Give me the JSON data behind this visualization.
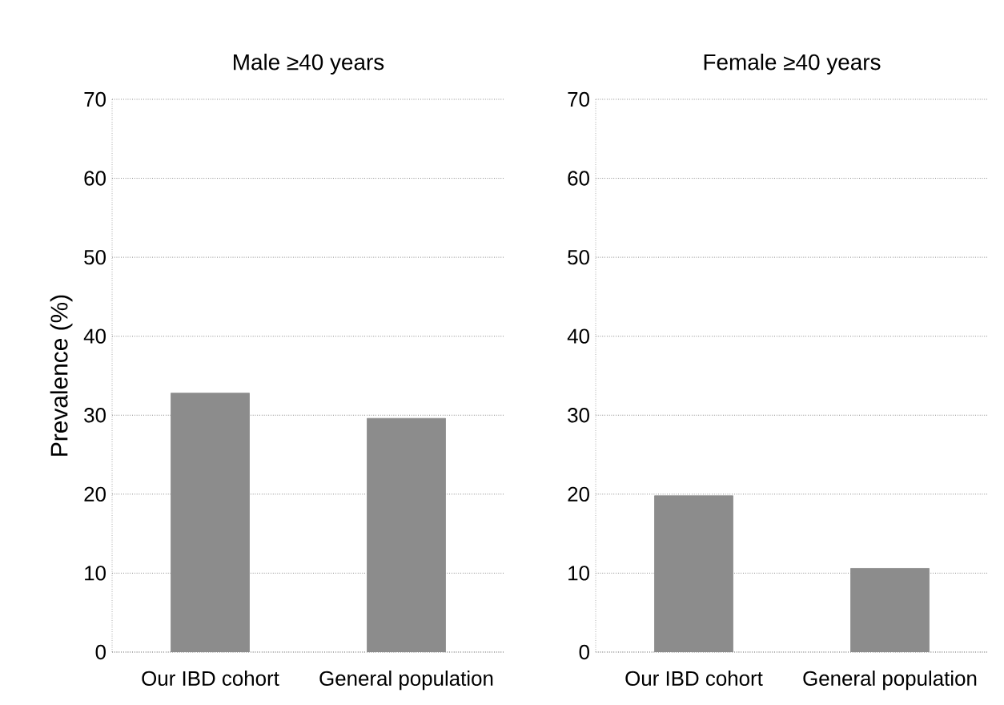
{
  "chart_data": [
    {
      "type": "bar",
      "title": "Male  ≥40 years",
      "ylabel": "Prevalence (%)",
      "categories": [
        "Our IBD cohort",
        "General population"
      ],
      "values": [
        32.8,
        29.6
      ],
      "color": "#8c8c8c",
      "ylim": [
        0,
        70
      ],
      "yticks": [
        0,
        10,
        20,
        30,
        40,
        50,
        60,
        70
      ],
      "grid": "y"
    },
    {
      "type": "bar",
      "title": "Female  ≥40 years",
      "categories": [
        "Our IBD cohort",
        "General population"
      ],
      "values": [
        19.8,
        10.6
      ],
      "color": "#8c8c8c",
      "ylim": [
        0,
        70
      ],
      "yticks": [
        0,
        10,
        20,
        30,
        40,
        50,
        60,
        70
      ],
      "grid": "y"
    }
  ]
}
